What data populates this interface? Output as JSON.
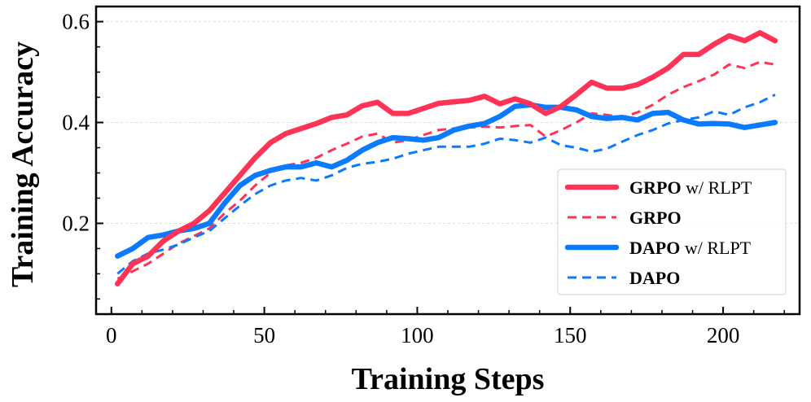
{
  "chart_data": {
    "type": "line",
    "xlabel": "Training Steps",
    "ylabel": "Training Accuracy",
    "xlim": [
      -5,
      225
    ],
    "ylim": [
      0.02,
      0.63
    ],
    "xticks": [
      0,
      50,
      100,
      150,
      200
    ],
    "yticks": [
      0.2,
      0.4,
      0.6
    ],
    "xtick_labels": [
      "0",
      "50",
      "100",
      "150",
      "200"
    ],
    "ytick_labels": [
      "0.2",
      "0.4",
      "0.6"
    ],
    "grid": true,
    "legend_position": "lower-right",
    "series": [
      {
        "name": "GRPO w/ RLPT",
        "legend_main": "GRPO",
        "legend_suffix": " w/ RLPT",
        "color": "#ff3355",
        "style": "solid",
        "x": [
          2,
          7,
          12,
          17,
          22,
          27,
          32,
          37,
          42,
          47,
          52,
          57,
          62,
          67,
          72,
          77,
          82,
          87,
          92,
          97,
          102,
          107,
          112,
          117,
          122,
          127,
          132,
          137,
          142,
          147,
          152,
          157,
          162,
          167,
          172,
          177,
          182,
          187,
          192,
          197,
          202,
          207,
          212,
          217
        ],
        "y": [
          0.08,
          0.12,
          0.135,
          0.165,
          0.185,
          0.2,
          0.225,
          0.26,
          0.295,
          0.33,
          0.36,
          0.378,
          0.388,
          0.398,
          0.41,
          0.415,
          0.433,
          0.44,
          0.418,
          0.418,
          0.428,
          0.438,
          0.441,
          0.444,
          0.452,
          0.437,
          0.447,
          0.437,
          0.418,
          0.432,
          0.455,
          0.48,
          0.468,
          0.468,
          0.475,
          0.49,
          0.508,
          0.535,
          0.535,
          0.555,
          0.572,
          0.562,
          0.578,
          0.562
        ]
      },
      {
        "name": "GRPO",
        "legend_main": "GRPO",
        "legend_suffix": "",
        "color": "#ff3355",
        "style": "dashed",
        "x": [
          2,
          7,
          12,
          17,
          22,
          27,
          32,
          37,
          42,
          47,
          52,
          57,
          62,
          67,
          72,
          77,
          82,
          87,
          92,
          97,
          102,
          107,
          112,
          117,
          122,
          127,
          132,
          137,
          142,
          147,
          152,
          157,
          162,
          167,
          172,
          177,
          182,
          187,
          192,
          197,
          202,
          207,
          212,
          217
        ],
        "y": [
          0.09,
          0.105,
          0.12,
          0.14,
          0.16,
          0.175,
          0.19,
          0.22,
          0.245,
          0.275,
          0.3,
          0.315,
          0.32,
          0.33,
          0.345,
          0.358,
          0.372,
          0.378,
          0.36,
          0.365,
          0.375,
          0.385,
          0.388,
          0.39,
          0.392,
          0.39,
          0.393,
          0.395,
          0.372,
          0.385,
          0.4,
          0.418,
          0.415,
          0.41,
          0.42,
          0.435,
          0.455,
          0.47,
          0.482,
          0.495,
          0.515,
          0.508,
          0.52,
          0.515
        ]
      },
      {
        "name": "DAPO w/ RLPT",
        "legend_main": "DAPO",
        "legend_suffix": " w/ RLPT",
        "color": "#0a7aff",
        "style": "solid",
        "x": [
          2,
          7,
          12,
          17,
          22,
          27,
          32,
          37,
          42,
          47,
          52,
          57,
          62,
          67,
          72,
          77,
          82,
          87,
          92,
          97,
          102,
          107,
          112,
          117,
          122,
          127,
          132,
          137,
          142,
          147,
          152,
          157,
          162,
          167,
          172,
          177,
          182,
          187,
          192,
          197,
          202,
          207,
          212,
          217
        ],
        "y": [
          0.135,
          0.15,
          0.172,
          0.177,
          0.185,
          0.19,
          0.2,
          0.24,
          0.275,
          0.295,
          0.305,
          0.312,
          0.312,
          0.32,
          0.312,
          0.325,
          0.345,
          0.36,
          0.37,
          0.368,
          0.365,
          0.37,
          0.385,
          0.393,
          0.398,
          0.412,
          0.432,
          0.435,
          0.43,
          0.43,
          0.425,
          0.412,
          0.408,
          0.41,
          0.405,
          0.418,
          0.42,
          0.405,
          0.397,
          0.398,
          0.397,
          0.39,
          0.395,
          0.4
        ]
      },
      {
        "name": "DAPO",
        "legend_main": "DAPO",
        "legend_suffix": "",
        "color": "#0a7aff",
        "style": "dashed",
        "x": [
          2,
          7,
          12,
          17,
          22,
          27,
          32,
          37,
          42,
          47,
          52,
          57,
          62,
          67,
          72,
          77,
          82,
          87,
          92,
          97,
          102,
          107,
          112,
          117,
          122,
          127,
          132,
          137,
          142,
          147,
          152,
          157,
          162,
          167,
          172,
          177,
          182,
          187,
          192,
          197,
          202,
          207,
          212,
          217
        ],
        "y": [
          0.1,
          0.125,
          0.14,
          0.148,
          0.158,
          0.172,
          0.185,
          0.21,
          0.235,
          0.258,
          0.275,
          0.285,
          0.29,
          0.285,
          0.295,
          0.31,
          0.318,
          0.322,
          0.328,
          0.338,
          0.345,
          0.352,
          0.352,
          0.352,
          0.358,
          0.368,
          0.365,
          0.36,
          0.37,
          0.355,
          0.35,
          0.342,
          0.348,
          0.362,
          0.375,
          0.385,
          0.398,
          0.405,
          0.41,
          0.422,
          0.415,
          0.43,
          0.44,
          0.455
        ]
      }
    ]
  }
}
